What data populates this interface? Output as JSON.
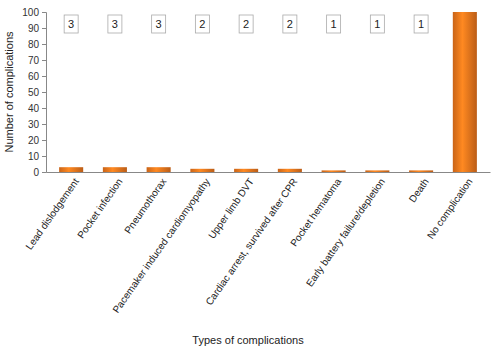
{
  "chart_data": {
    "type": "bar",
    "x_label": "Types of complications",
    "y_label": "Number of complications",
    "categories": [
      "Lead dislodgement",
      "Pocket infection",
      "Pneumothorax",
      "Pacemaker induced cardiomyopathy",
      "Upper limb DVT",
      "Cardiac arrest, survived after CPR",
      "Pocket hematoma",
      "Early battery failure/depletion",
      "Death",
      "No complication"
    ],
    "values": [
      3,
      3,
      3,
      2,
      2,
      2,
      1,
      1,
      1,
      100
    ],
    "value_labels": [
      "3",
      "3",
      "3",
      "2",
      "2",
      "2",
      "1",
      "1",
      "1",
      null
    ],
    "data_labels": true,
    "color": "#e8731c",
    "ylim": [
      0,
      100
    ],
    "yticks": [
      0,
      10,
      20,
      30,
      40,
      50,
      60,
      70,
      80,
      90,
      100
    ],
    "grid": false
  }
}
